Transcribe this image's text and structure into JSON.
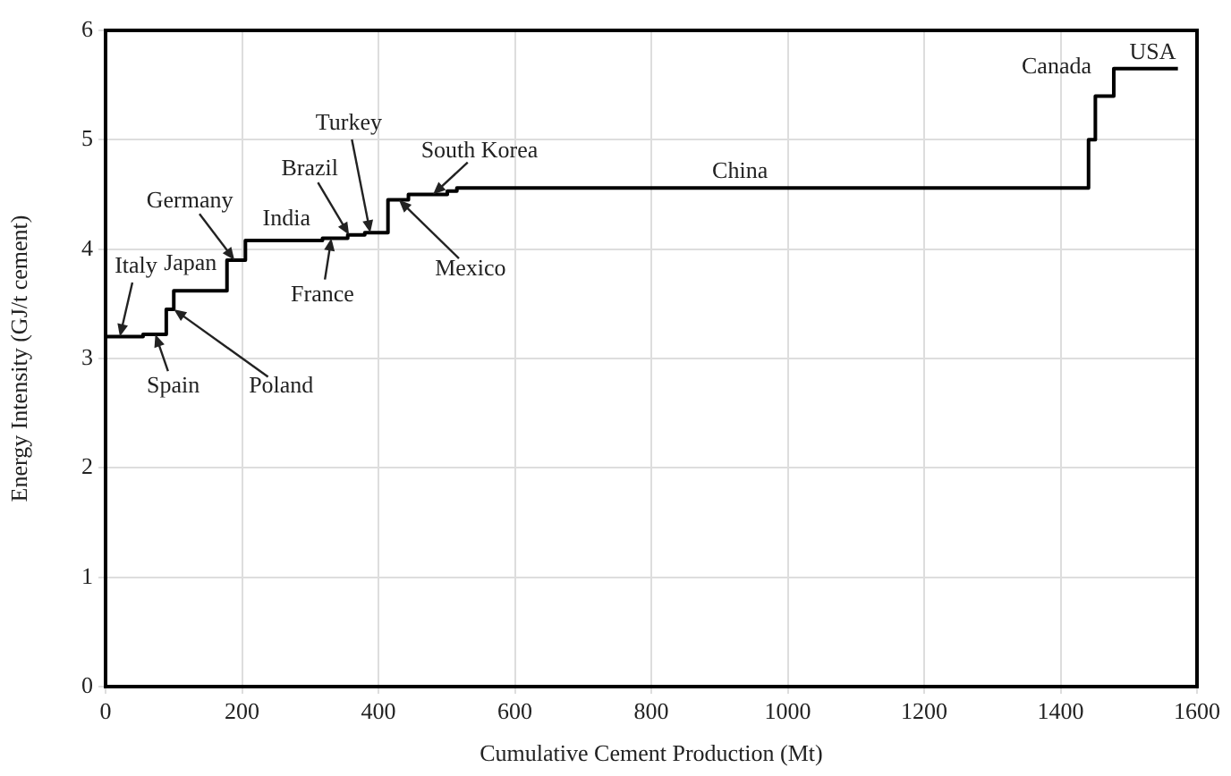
{
  "chart_data": {
    "type": "step",
    "xlabel": "Cumulative Cement Production (Mt)",
    "ylabel": "Energy Intensity (GJ/t cement)",
    "x": [
      0,
      55,
      89,
      100,
      178,
      205,
      318,
      355,
      380,
      414,
      444,
      501,
      515,
      1441,
      1451,
      1478,
      1572
    ],
    "values": [
      3.2,
      3.22,
      3.45,
      3.62,
      3.9,
      4.08,
      4.1,
      4.13,
      4.15,
      4.45,
      4.5,
      4.53,
      4.56,
      5.0,
      5.4,
      5.65,
      5.65
    ],
    "color": "#000000",
    "marker": "none",
    "legend": false,
    "grid": true,
    "xlim": [
      0,
      1600
    ],
    "xticks": [
      0,
      200,
      400,
      600,
      800,
      1000,
      1200,
      1400,
      1600
    ],
    "ylim": [
      0,
      6
    ],
    "yticks": [
      0,
      1,
      2,
      3,
      4,
      5,
      6
    ],
    "annotations": [
      {
        "text": "Italy",
        "x": 21,
        "y": 3.2
      },
      {
        "text": "Spain",
        "x": 73,
        "y": 3.22
      },
      {
        "text": "Poland",
        "x": 100,
        "y": 3.45
      },
      {
        "text": "Japan",
        "x": 140,
        "y": 3.62
      },
      {
        "text": "Germany",
        "x": 189,
        "y": 3.9
      },
      {
        "text": "India",
        "x": 260,
        "y": 4.08
      },
      {
        "text": "France",
        "x": 331,
        "y": 4.1
      },
      {
        "text": "Brazil",
        "x": 357,
        "y": 4.13
      },
      {
        "text": "Turkey",
        "x": 388,
        "y": 4.15
      },
      {
        "text": "South Korea",
        "x": 480,
        "y": 4.5
      },
      {
        "text": "Mexico",
        "x": 430,
        "y": 4.45
      },
      {
        "text": "China",
        "x": 930,
        "y": 4.56
      },
      {
        "text": "Canada",
        "x": 1478,
        "y": 5.65
      },
      {
        "text": "USA",
        "x": 1535,
        "y": 5.65
      }
    ]
  }
}
